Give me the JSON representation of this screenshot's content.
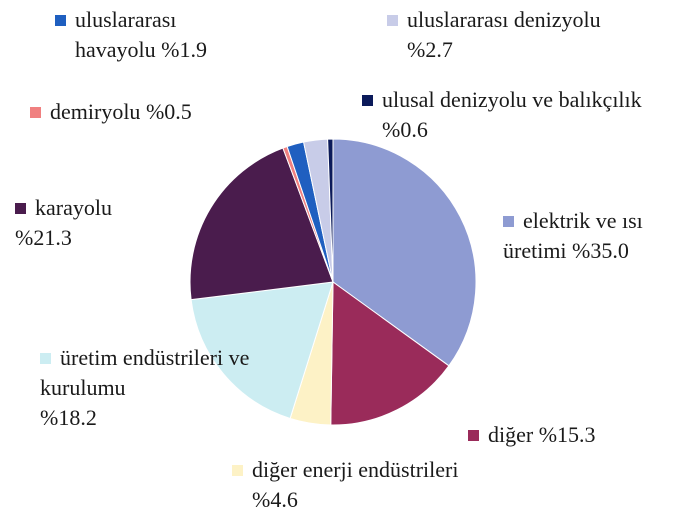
{
  "chart_data": {
    "type": "pie",
    "categories": [
      "elektrik ve ısı üretimi",
      "diğer",
      "diğer enerji endüstrileri",
      "üretim endüstrileri ve kurulumu",
      "karayolu",
      "demiryolu",
      "uluslararası havayolu",
      "uluslararası denizyolu",
      "ulusal denizyolu ve balıkçılık"
    ],
    "values": [
      35.0,
      15.3,
      4.6,
      18.2,
      21.3,
      0.5,
      1.9,
      2.7,
      0.6
    ],
    "value_labels": [
      "%35.0",
      "%15.3",
      "%4.6",
      "%18.2",
      "%21.3",
      "%0.5",
      "%1.9",
      "%2.7",
      "%0.6"
    ],
    "colors": [
      "#8e9bd2",
      "#9a2b5a",
      "#fdf2c6",
      "#ccedf2",
      "#4a1c4d",
      "#f08080",
      "#1f5fc0",
      "#c8cce8",
      "#0b1a5a"
    ]
  }
}
